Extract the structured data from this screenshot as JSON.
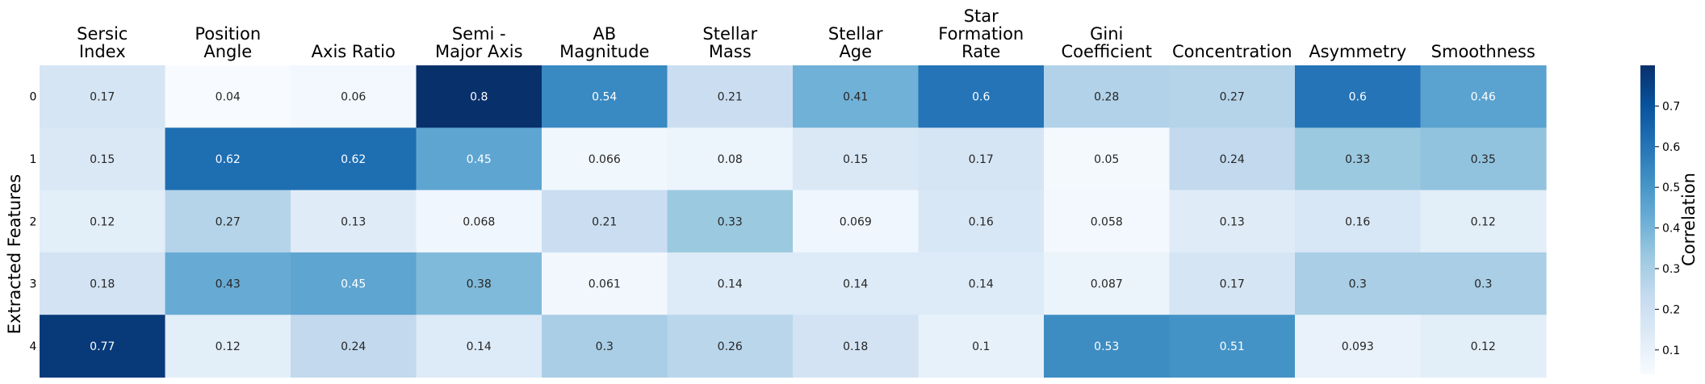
{
  "chart_data": {
    "type": "heatmap",
    "title": "",
    "xlabel": "",
    "ylabel": "Extracted Features",
    "columns": [
      [
        "Sersic",
        "Index"
      ],
      [
        "Position",
        "Angle"
      ],
      [
        "Axis Ratio"
      ],
      [
        "Semi -",
        "Major Axis"
      ],
      [
        "AB",
        "Magnitude"
      ],
      [
        "Stellar",
        "Mass"
      ],
      [
        "Stellar",
        "Age"
      ],
      [
        "Star",
        "Formation",
        "Rate"
      ],
      [
        "Gini",
        "Coefficient"
      ],
      [
        "Concentration"
      ],
      [
        "Asymmetry"
      ],
      [
        "Smoothness"
      ]
    ],
    "rows": [
      "0",
      "1",
      "2",
      "3",
      "4"
    ],
    "values": [
      [
        0.17,
        0.04,
        0.06,
        0.8,
        0.54,
        0.21,
        0.41,
        0.6,
        0.28,
        0.27,
        0.6,
        0.46
      ],
      [
        0.15,
        0.62,
        0.62,
        0.45,
        0.066,
        0.08,
        0.15,
        0.17,
        0.05,
        0.24,
        0.33,
        0.35
      ],
      [
        0.12,
        0.27,
        0.13,
        0.068,
        0.21,
        0.33,
        0.069,
        0.16,
        0.058,
        0.13,
        0.16,
        0.12
      ],
      [
        0.18,
        0.43,
        0.45,
        0.38,
        0.061,
        0.14,
        0.14,
        0.14,
        0.087,
        0.17,
        0.3,
        0.3
      ],
      [
        0.77,
        0.12,
        0.24,
        0.14,
        0.3,
        0.26,
        0.18,
        0.1,
        0.53,
        0.51,
        0.093,
        0.12
      ]
    ],
    "colormap": "Blues",
    "vmin": 0.04,
    "vmax": 0.8,
    "colorbar": {
      "label": "Correlation",
      "ticks": [
        0.1,
        0.2,
        0.3,
        0.4,
        0.5,
        0.6,
        0.7
      ]
    },
    "annotated": true
  }
}
